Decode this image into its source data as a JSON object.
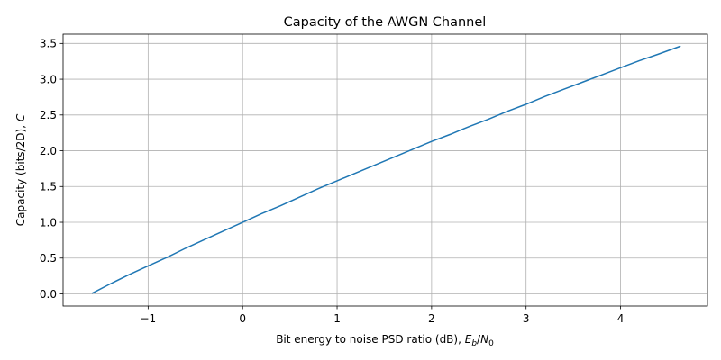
{
  "chart_data": {
    "type": "line",
    "title": "Capacity of the AWGN Channel",
    "xlabel": {
      "prefix": "Bit energy to noise PSD ratio (dB), ",
      "math": "E_b/N_0"
    },
    "ylabel": {
      "prefix": "Capacity (bits/2D), ",
      "math": "C"
    },
    "xlim": [
      -1.9,
      4.92
    ],
    "ylim": [
      -0.17,
      3.63
    ],
    "xticks": [
      -1,
      0,
      1,
      2,
      3,
      4
    ],
    "xtick_labels": [
      "−1",
      "0",
      "1",
      "2",
      "3",
      "4"
    ],
    "yticks": [
      0.0,
      0.5,
      1.0,
      1.5,
      2.0,
      2.5,
      3.0,
      3.5
    ],
    "ytick_labels": [
      "0.0",
      "0.5",
      "1.0",
      "1.5",
      "2.0",
      "2.5",
      "3.0",
      "3.5"
    ],
    "grid": true,
    "series": [
      {
        "color": "#1f77b4",
        "x": [
          -1.59,
          -1.4,
          -1.2,
          -1.0,
          -0.8,
          -0.6,
          -0.4,
          -0.2,
          0.0,
          0.2,
          0.4,
          0.6,
          0.8,
          1.0,
          1.2,
          1.4,
          1.6,
          1.8,
          2.0,
          2.2,
          2.4,
          2.6,
          2.8,
          3.0,
          3.2,
          3.4,
          3.6,
          3.8,
          4.0,
          4.2,
          4.4,
          4.63
        ],
        "y": [
          0.01,
          0.14,
          0.27,
          0.39,
          0.51,
          0.64,
          0.76,
          0.88,
          1.0,
          1.12,
          1.23,
          1.35,
          1.47,
          1.58,
          1.69,
          1.8,
          1.91,
          2.02,
          2.13,
          2.23,
          2.34,
          2.44,
          2.55,
          2.65,
          2.76,
          2.86,
          2.96,
          3.06,
          3.16,
          3.26,
          3.35,
          3.46
        ]
      }
    ]
  }
}
